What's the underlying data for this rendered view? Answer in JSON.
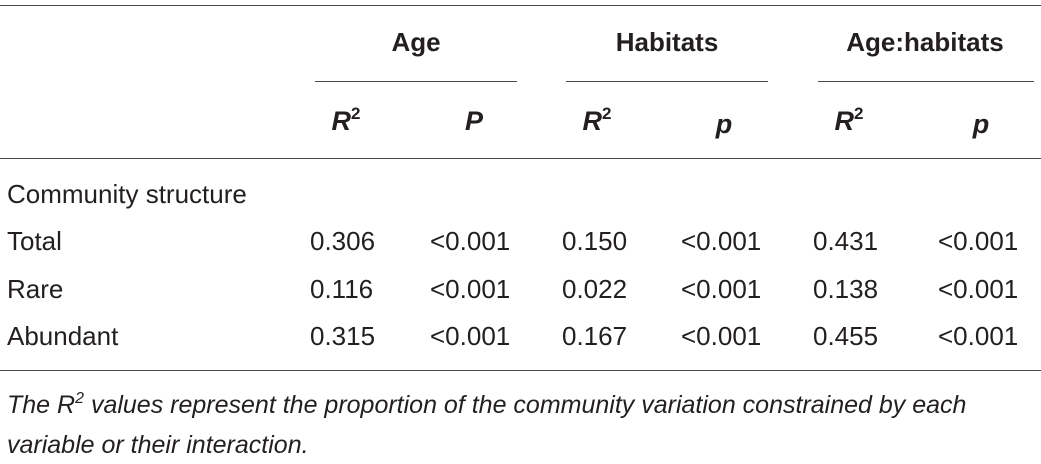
{
  "table": {
    "column_groups": [
      "Age",
      "Habitats",
      "Age:habitats"
    ],
    "subheaders": {
      "age_r": "R",
      "age_p": "P",
      "hab_r": "R",
      "hab_p": "p",
      "inter_r": "R",
      "inter_p": "p",
      "sup": "2"
    },
    "section_label": "Community structure",
    "rows": [
      {
        "label": "Total",
        "values": [
          "0.306",
          "<0.001",
          "0.150",
          "<0.001",
          "0.431",
          "<0.001"
        ]
      },
      {
        "label": "Rare",
        "values": [
          "0.116",
          "<0.001",
          "0.022",
          "<0.001",
          "0.138",
          "<0.001"
        ]
      },
      {
        "label": "Abundant",
        "values": [
          "0.315",
          "<0.001",
          "0.167",
          "<0.001",
          "0.455",
          "<0.001"
        ]
      }
    ]
  },
  "footnote": {
    "part1": "The R",
    "sup": "2",
    "part2": " values represent the proportion of the community variation constrained by each variable or their interaction."
  }
}
